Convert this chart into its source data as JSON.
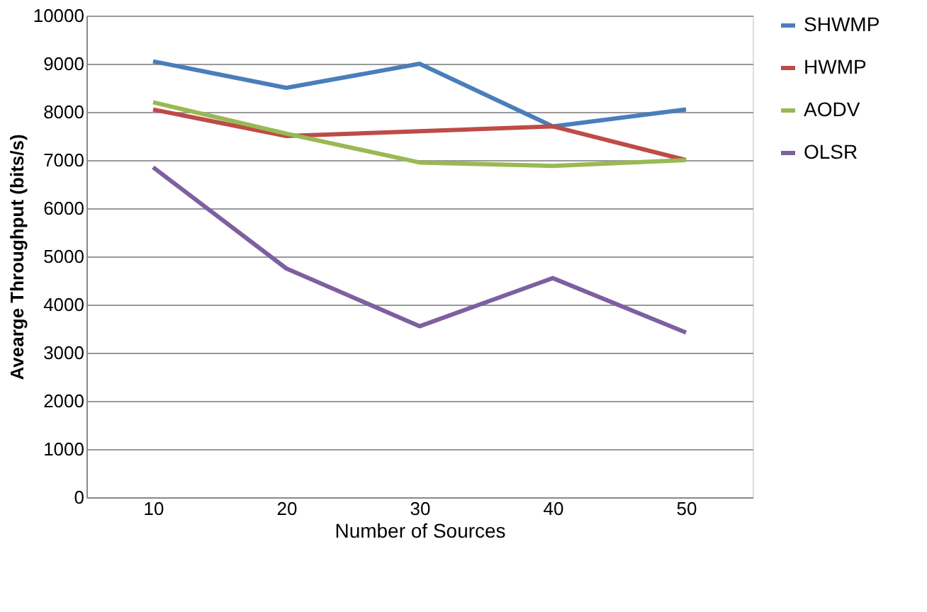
{
  "chart_data": {
    "type": "line",
    "xlabel": "Number of Sources",
    "ylabel": "Avearge Throughput  (bits/s)",
    "categories": [
      "10",
      "20",
      "30",
      "40",
      "50"
    ],
    "series": [
      {
        "name": "SHWMP",
        "color": "#4a7ebb",
        "values": [
          9050,
          8500,
          9000,
          7700,
          8050
        ]
      },
      {
        "name": "HWMP",
        "color": "#be4b48",
        "values": [
          8050,
          7500,
          7600,
          7700,
          7000
        ]
      },
      {
        "name": "AODV",
        "color": "#98b954",
        "values": [
          8200,
          7550,
          6950,
          6880,
          7000
        ]
      },
      {
        "name": "OLSR",
        "color": "#7d60a0",
        "values": [
          6850,
          4750,
          3550,
          4550,
          3420
        ]
      }
    ],
    "ylim": [
      0,
      10000
    ],
    "yticks": [
      0,
      1000,
      2000,
      3000,
      4000,
      5000,
      6000,
      7000,
      8000,
      9000,
      10000
    ],
    "grid": "y",
    "legend": "right",
    "marker": "none",
    "line_style": "solid"
  }
}
